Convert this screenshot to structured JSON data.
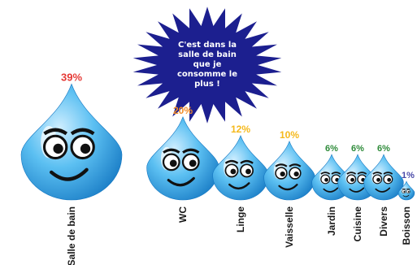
{
  "callout": {
    "lines": [
      "C'est dans la",
      "salle de bain",
      "que je",
      "consomme le",
      "plus !"
    ]
  },
  "chart_data": {
    "type": "bar",
    "title": "",
    "categories": [
      "Salle de bain",
      "WC",
      "Linge",
      "Vaisselle",
      "Jardin",
      "Cuisine",
      "Divers",
      "Boisson"
    ],
    "values": [
      39,
      20,
      12,
      10,
      6,
      6,
      6,
      1
    ],
    "value_labels": [
      "39%",
      "20%",
      "12%",
      "10%",
      "6%",
      "6%",
      "6%",
      "1%"
    ],
    "label_colors": [
      "#e53935",
      "#f28c28",
      "#f5b91c",
      "#f5b91c",
      "#2e8b3a",
      "#2e8b3a",
      "#2e8b3a",
      "#4a4aa8"
    ],
    "drop_color": "#3aa6e6",
    "burst_color": "#1c1f8f"
  }
}
